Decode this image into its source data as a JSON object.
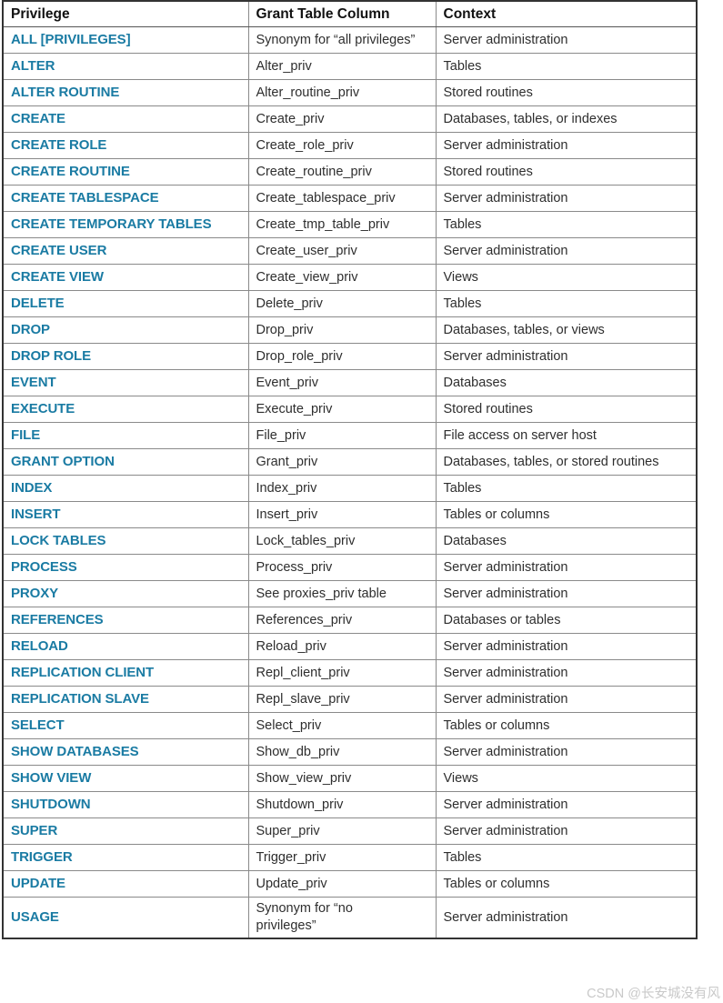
{
  "page": {
    "watermark": "CSDN @长安城没有风"
  },
  "colors": {
    "privilege_link": "#1a7ba3",
    "header_text": "#111111",
    "body_text": "#2e2e2e",
    "border_outer": "#333333",
    "border_inner": "#8a8a8a",
    "watermark": "#c9c9c9"
  },
  "table": {
    "headers": [
      "Privilege",
      "Grant Table Column",
      "Context"
    ],
    "rows": [
      {
        "privilege": "ALL [PRIVILEGES]",
        "grant_column": "Synonym for “all privileges”",
        "context": "Server administration"
      },
      {
        "privilege": "ALTER",
        "grant_column": "Alter_priv",
        "context": "Tables"
      },
      {
        "privilege": "ALTER ROUTINE",
        "grant_column": "Alter_routine_priv",
        "context": "Stored routines"
      },
      {
        "privilege": "CREATE",
        "grant_column": "Create_priv",
        "context": "Databases, tables, or indexes"
      },
      {
        "privilege": "CREATE ROLE",
        "grant_column": "Create_role_priv",
        "context": "Server administration"
      },
      {
        "privilege": "CREATE ROUTINE",
        "grant_column": "Create_routine_priv",
        "context": "Stored routines"
      },
      {
        "privilege": "CREATE TABLESPACE",
        "grant_column": "Create_tablespace_priv",
        "context": "Server administration"
      },
      {
        "privilege": "CREATE TEMPORARY TABLES",
        "grant_column": "Create_tmp_table_priv",
        "context": "Tables"
      },
      {
        "privilege": "CREATE USER",
        "grant_column": "Create_user_priv",
        "context": "Server administration"
      },
      {
        "privilege": "CREATE VIEW",
        "grant_column": "Create_view_priv",
        "context": "Views"
      },
      {
        "privilege": "DELETE",
        "grant_column": "Delete_priv",
        "context": "Tables"
      },
      {
        "privilege": "DROP",
        "grant_column": "Drop_priv",
        "context": "Databases, tables, or views"
      },
      {
        "privilege": "DROP ROLE",
        "grant_column": "Drop_role_priv",
        "context": "Server administration"
      },
      {
        "privilege": "EVENT",
        "grant_column": "Event_priv",
        "context": "Databases"
      },
      {
        "privilege": "EXECUTE",
        "grant_column": "Execute_priv",
        "context": "Stored routines"
      },
      {
        "privilege": "FILE",
        "grant_column": "File_priv",
        "context": "File access on server host"
      },
      {
        "privilege": "GRANT OPTION",
        "grant_column": "Grant_priv",
        "context": "Databases, tables, or stored routines"
      },
      {
        "privilege": "INDEX",
        "grant_column": "Index_priv",
        "context": "Tables"
      },
      {
        "privilege": "INSERT",
        "grant_column": "Insert_priv",
        "context": "Tables or columns"
      },
      {
        "privilege": "LOCK TABLES",
        "grant_column": "Lock_tables_priv",
        "context": "Databases"
      },
      {
        "privilege": "PROCESS",
        "grant_column": "Process_priv",
        "context": "Server administration"
      },
      {
        "privilege": "PROXY",
        "grant_column": "See proxies_priv table",
        "context": "Server administration"
      },
      {
        "privilege": "REFERENCES",
        "grant_column": "References_priv",
        "context": "Databases or tables"
      },
      {
        "privilege": "RELOAD",
        "grant_column": "Reload_priv",
        "context": "Server administration"
      },
      {
        "privilege": "REPLICATION CLIENT",
        "grant_column": "Repl_client_priv",
        "context": "Server administration"
      },
      {
        "privilege": "REPLICATION SLAVE",
        "grant_column": "Repl_slave_priv",
        "context": "Server administration"
      },
      {
        "privilege": "SELECT",
        "grant_column": "Select_priv",
        "context": "Tables or columns"
      },
      {
        "privilege": "SHOW DATABASES",
        "grant_column": "Show_db_priv",
        "context": "Server administration"
      },
      {
        "privilege": "SHOW VIEW",
        "grant_column": "Show_view_priv",
        "context": "Views"
      },
      {
        "privilege": "SHUTDOWN",
        "grant_column": "Shutdown_priv",
        "context": "Server administration"
      },
      {
        "privilege": "SUPER",
        "grant_column": "Super_priv",
        "context": "Server administration"
      },
      {
        "privilege": "TRIGGER",
        "grant_column": "Trigger_priv",
        "context": "Tables"
      },
      {
        "privilege": "UPDATE",
        "grant_column": "Update_priv",
        "context": "Tables or columns"
      },
      {
        "privilege": "USAGE",
        "grant_column": "Synonym for “no\nprivileges”",
        "context": "Server administration"
      }
    ]
  }
}
